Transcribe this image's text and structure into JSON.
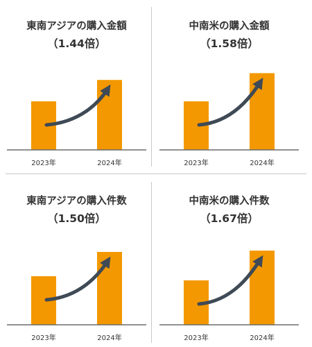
{
  "colors": {
    "bar": "#F39800",
    "arrow": "#3F4A56",
    "axis": "#6B6B6B",
    "text": "#333333"
  },
  "chart_data": [
    {
      "type": "bar",
      "title": "東南アジアの購入金額",
      "subtitle": "（1.44倍）",
      "categories": [
        "2023年",
        "2024年"
      ],
      "values": [
        1.0,
        1.44
      ],
      "ylim": [
        0,
        1.6
      ],
      "annotation": "upward-arrow",
      "grid": false
    },
    {
      "type": "bar",
      "title": "中南米の購入金額",
      "subtitle": "（1.58倍）",
      "categories": [
        "2023年",
        "2024年"
      ],
      "values": [
        1.0,
        1.58
      ],
      "ylim": [
        0,
        1.6
      ],
      "annotation": "upward-arrow",
      "grid": false
    },
    {
      "type": "bar",
      "title": "東南アジアの購入件数",
      "subtitle": "（1.50倍）",
      "categories": [
        "2023年",
        "2024年"
      ],
      "values": [
        1.0,
        1.5
      ],
      "ylim": [
        0,
        1.6
      ],
      "annotation": "upward-arrow",
      "grid": false
    },
    {
      "type": "bar",
      "title": "中南米の購入件数",
      "subtitle": "（1.67倍）",
      "categories": [
        "2023年",
        "2024年"
      ],
      "values": [
        1.0,
        1.67
      ],
      "ylim": [
        0,
        1.75
      ],
      "annotation": "upward-arrow",
      "grid": false
    }
  ]
}
